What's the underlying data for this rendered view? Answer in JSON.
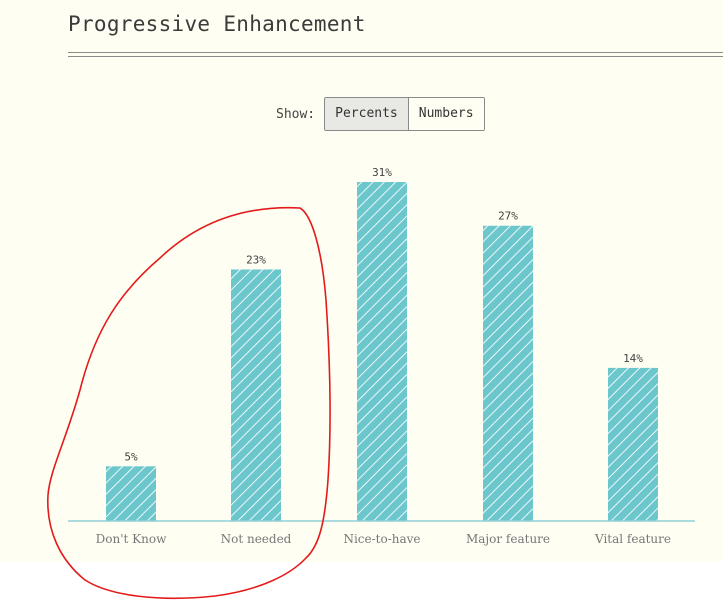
{
  "page": {
    "title": "Progressive Enhancement",
    "show_label": "Show:",
    "toggle": [
      {
        "label": "Percents",
        "active": true
      },
      {
        "label": "Numbers",
        "active": false
      }
    ]
  },
  "colors": {
    "bar": "#6cc7cd",
    "baseline": "#8fcfd6",
    "annotation": "#e31b1b"
  },
  "chart_data": {
    "type": "bar",
    "title": "",
    "xlabel": "",
    "ylabel": "",
    "categories": [
      "Don't Know",
      "Not needed",
      "Nice-to-have",
      "Major feature",
      "Vital feature"
    ],
    "values": [
      5,
      23,
      31,
      27,
      14
    ],
    "value_labels": [
      "5%",
      "23%",
      "31%",
      "27%",
      "14%"
    ],
    "ylim": [
      0,
      31
    ],
    "grid": false,
    "legend": "none"
  }
}
